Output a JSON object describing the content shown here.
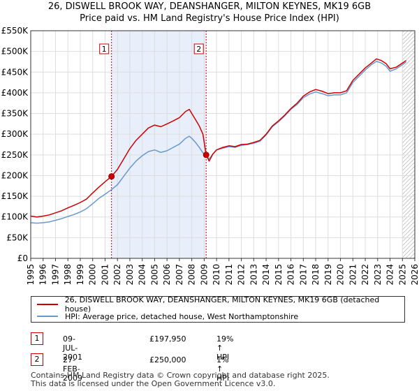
{
  "chart_data": {
    "type": "line",
    "title": "26, DISWELL BROOK WAY, DEANSHANGER, MILTON KEYNES, MK19 6GB",
    "subtitle": "Price paid vs. HM Land Registry's House Price Index (HPI)",
    "xlabel": "",
    "ylabel": "",
    "xlim": [
      1995,
      2026
    ],
    "ylim": [
      0,
      550000
    ],
    "y_ticks": [
      0,
      50000,
      100000,
      150000,
      200000,
      250000,
      300000,
      350000,
      400000,
      450000,
      500000,
      550000
    ],
    "y_tick_labels": [
      "£0",
      "£50K",
      "£100K",
      "£150K",
      "£200K",
      "£250K",
      "£300K",
      "£350K",
      "£400K",
      "£450K",
      "£500K",
      "£550K"
    ],
    "x_ticks": [
      "1995",
      "1996",
      "1997",
      "1998",
      "1999",
      "2000",
      "2001",
      "2002",
      "2003",
      "2004",
      "2005",
      "2006",
      "2007",
      "2008",
      "2009",
      "2010",
      "2011",
      "2012",
      "2013",
      "2014",
      "2015",
      "2016",
      "2017",
      "2018",
      "2019",
      "2020",
      "2021",
      "2022",
      "2023",
      "2024",
      "2025",
      "2026"
    ],
    "grid": true,
    "shaded_region": [
      2001.52,
      2009.16
    ],
    "hatched_from": 2025.0,
    "series": [
      {
        "name": "26, DISWELL BROOK WAY, DEANSHANGER, MILTON KEYNES, MK19 6GB (detached house)",
        "color": "#cc0000",
        "x": [
          1995.0,
          1995.5,
          1996.0,
          1996.5,
          1997.0,
          1997.5,
          1998.0,
          1998.5,
          1999.0,
          1999.5,
          2000.0,
          2000.5,
          2001.0,
          2001.52,
          2002.0,
          2002.5,
          2003.0,
          2003.5,
          2004.0,
          2004.5,
          2005.0,
          2005.5,
          2006.0,
          2006.5,
          2007.0,
          2007.5,
          2007.8,
          2008.0,
          2008.3,
          2008.6,
          2008.9,
          2009.16,
          2009.4,
          2009.7,
          2010.0,
          2010.5,
          2011.0,
          2011.5,
          2012.0,
          2012.5,
          2013.0,
          2013.5,
          2014.0,
          2014.5,
          2015.0,
          2015.5,
          2016.0,
          2016.5,
          2017.0,
          2017.5,
          2018.0,
          2018.5,
          2019.0,
          2019.5,
          2020.0,
          2020.5,
          2021.0,
          2021.5,
          2022.0,
          2022.5,
          2022.9,
          2023.3,
          2023.7,
          2024.0,
          2024.5,
          2025.0,
          2025.3
        ],
        "values": [
          102000,
          100000,
          102000,
          105000,
          110000,
          115000,
          122000,
          128000,
          135000,
          143000,
          158000,
          172000,
          185000,
          197950,
          215000,
          240000,
          265000,
          285000,
          300000,
          315000,
          322000,
          318000,
          325000,
          332000,
          340000,
          355000,
          360000,
          350000,
          335000,
          320000,
          300000,
          250000,
          235000,
          252000,
          262000,
          268000,
          272000,
          270000,
          275000,
          276000,
          280000,
          285000,
          300000,
          320000,
          332000,
          346000,
          362000,
          375000,
          392000,
          402000,
          408000,
          404000,
          398000,
          400000,
          400000,
          405000,
          430000,
          445000,
          460000,
          472000,
          482000,
          478000,
          470000,
          458000,
          462000,
          472000,
          478000
        ]
      },
      {
        "name": "HPI: Average price, detached house, West Northamptonshire",
        "color": "#6699cc",
        "x": [
          1995.0,
          1995.5,
          1996.0,
          1996.5,
          1997.0,
          1997.5,
          1998.0,
          1998.5,
          1999.0,
          1999.5,
          2000.0,
          2000.5,
          2001.0,
          2001.52,
          2002.0,
          2002.5,
          2003.0,
          2003.5,
          2004.0,
          2004.5,
          2005.0,
          2005.5,
          2006.0,
          2006.5,
          2007.0,
          2007.5,
          2007.8,
          2008.0,
          2008.3,
          2008.6,
          2008.9,
          2009.16,
          2009.4,
          2009.7,
          2010.0,
          2010.5,
          2011.0,
          2011.5,
          2012.0,
          2012.5,
          2013.0,
          2013.5,
          2014.0,
          2014.5,
          2015.0,
          2015.5,
          2016.0,
          2016.5,
          2017.0,
          2017.5,
          2018.0,
          2018.5,
          2019.0,
          2019.5,
          2020.0,
          2020.5,
          2021.0,
          2021.5,
          2022.0,
          2022.5,
          2022.9,
          2023.3,
          2023.7,
          2024.0,
          2024.5,
          2025.0,
          2025.3
        ],
        "values": [
          86000,
          85000,
          86000,
          88000,
          92000,
          96000,
          101000,
          106000,
          112000,
          120000,
          132000,
          145000,
          155000,
          166000,
          178000,
          198000,
          218000,
          235000,
          248000,
          258000,
          262000,
          256000,
          260000,
          268000,
          276000,
          290000,
          295000,
          290000,
          280000,
          268000,
          255000,
          248000,
          240000,
          252000,
          262000,
          266000,
          270000,
          268000,
          273000,
          275000,
          278000,
          283000,
          298000,
          318000,
          330000,
          344000,
          360000,
          372000,
          388000,
          397000,
          402000,
          398000,
          393000,
          395000,
          395000,
          400000,
          425000,
          440000,
          455000,
          468000,
          476000,
          472000,
          464000,
          452000,
          458000,
          468000,
          474000
        ]
      }
    ],
    "transactions": [
      {
        "marker": "1",
        "x": 2001.52,
        "value": 197950,
        "date": "09-JUL-2001",
        "price": "£197,950",
        "hpi": "19% ↑ HPI"
      },
      {
        "marker": "2",
        "x": 2009.16,
        "value": 250000,
        "date": "27-FEB-2009",
        "price": "£250,000",
        "hpi": "1% ↑ HPI"
      }
    ]
  },
  "legend": {
    "series_1": "26, DISWELL BROOK WAY, DEANSHANGER, MILTON KEYNES, MK19 6GB (detached house)",
    "series_2": "HPI: Average price, detached house, West Northamptonshire"
  },
  "footer": {
    "line1": "Contains HM Land Registry data © Crown copyright and database right 2025.",
    "line2": "This data is licensed under the Open Government Licence v3.0."
  }
}
